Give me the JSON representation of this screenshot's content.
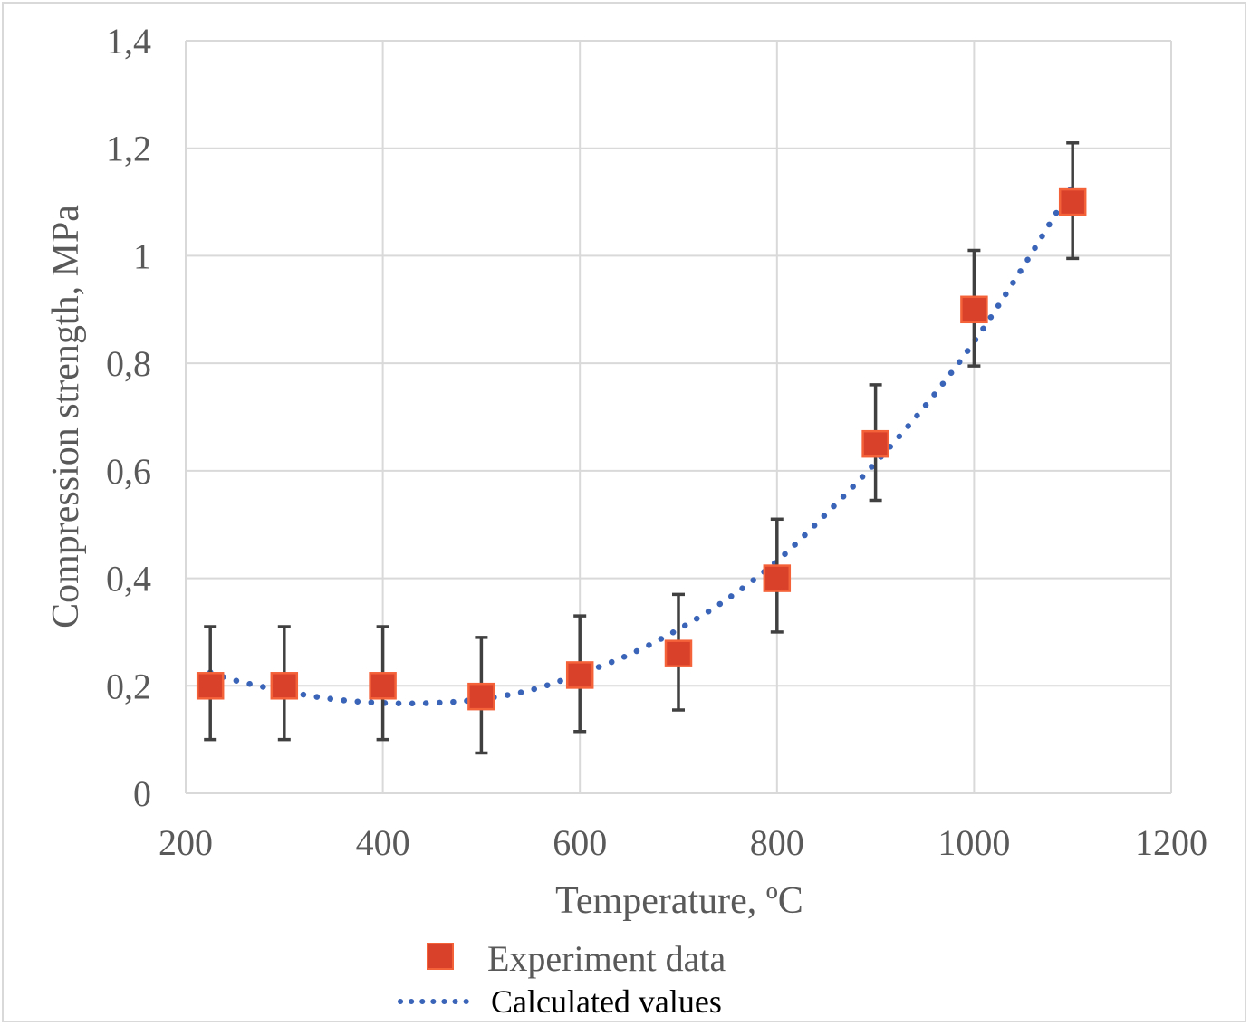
{
  "chart_data": {
    "type": "scatter",
    "xlabel": "Temperature, ºC",
    "ylabel": "Compression strength, MPa",
    "xlim": [
      200,
      1200
    ],
    "ylim": [
      0,
      1.4
    ],
    "x_ticks": [
      200,
      400,
      600,
      800,
      1000,
      1200
    ],
    "y_ticks": [
      0,
      0.2,
      0.4,
      0.6,
      0.8,
      1.0,
      1.2,
      1.4
    ],
    "x_tick_labels": [
      "200",
      "400",
      "600",
      "800",
      "1000",
      "1200"
    ],
    "y_tick_labels": [
      "0",
      "0,2",
      "0,4",
      "0,6",
      "0,8",
      "1",
      "1,2",
      "1,4"
    ],
    "grid": true,
    "legend_position": "bottom",
    "series": [
      {
        "name": "Experiment data",
        "kind": "markers",
        "marker": "square",
        "color": "#d9412b",
        "edge_color": "#f4623a",
        "x": [
          225,
          300,
          400,
          500,
          600,
          700,
          800,
          900,
          1000,
          1100
        ],
        "values": [
          0.2,
          0.2,
          0.2,
          0.18,
          0.22,
          0.26,
          0.4,
          0.65,
          0.9,
          1.1
        ],
        "error_low": [
          0.1,
          0.1,
          0.1,
          0.105,
          0.105,
          0.105,
          0.1,
          0.105,
          0.105,
          0.105
        ],
        "error_high": [
          0.11,
          0.11,
          0.11,
          0.11,
          0.11,
          0.11,
          0.11,
          0.11,
          0.11,
          0.11
        ],
        "error_color": "#404040"
      },
      {
        "name": "Calculated values",
        "kind": "dotted-line",
        "color": "#3a64b8",
        "x": [
          225,
          250,
          300,
          350,
          400,
          450,
          500,
          550,
          600,
          650,
          700,
          750,
          800,
          850,
          900,
          950,
          1000,
          1050,
          1100
        ],
        "values": [
          0.225,
          0.21,
          0.19,
          0.175,
          0.168,
          0.168,
          0.175,
          0.192,
          0.222,
          0.258,
          0.305,
          0.362,
          0.432,
          0.52,
          0.615,
          0.72,
          0.84,
          0.98,
          1.13
        ]
      }
    ]
  },
  "colors": {
    "grid": "#d9d9d9",
    "text": "#595959",
    "frame": "#d9d9d9"
  }
}
